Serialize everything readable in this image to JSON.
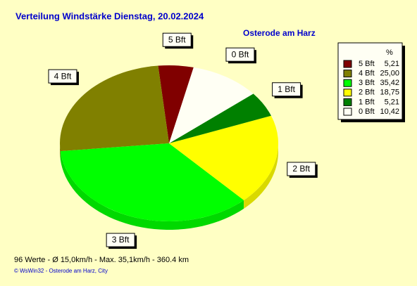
{
  "chart_data": {
    "type": "pie",
    "title": "Verteilung Windstärke  Dienstag, 20.02.2024",
    "subtitle": "Osterode am Harz",
    "legend_header": "%",
    "categories": [
      "5 Bft",
      "4 Bft",
      "3 Bft",
      "2 Bft",
      "1 Bft",
      "0 Bft"
    ],
    "values": [
      5.21,
      25.0,
      35.42,
      18.75,
      5.21,
      10.42
    ],
    "value_labels": [
      "5,21",
      "25,00",
      "35,42",
      "18,75",
      "5,21",
      "10,42"
    ],
    "colors": [
      "#800000",
      "#808000",
      "#00ff00",
      "#ffff00",
      "#008000",
      "#fffff4"
    ],
    "legend": "top-right",
    "annotations": [
      "96 Werte   -   Ø 15,0km/h  -  Max. 35,1km/h   -   360.4 km",
      "© WsWin32  -  Osterode am Harz, City"
    ]
  }
}
